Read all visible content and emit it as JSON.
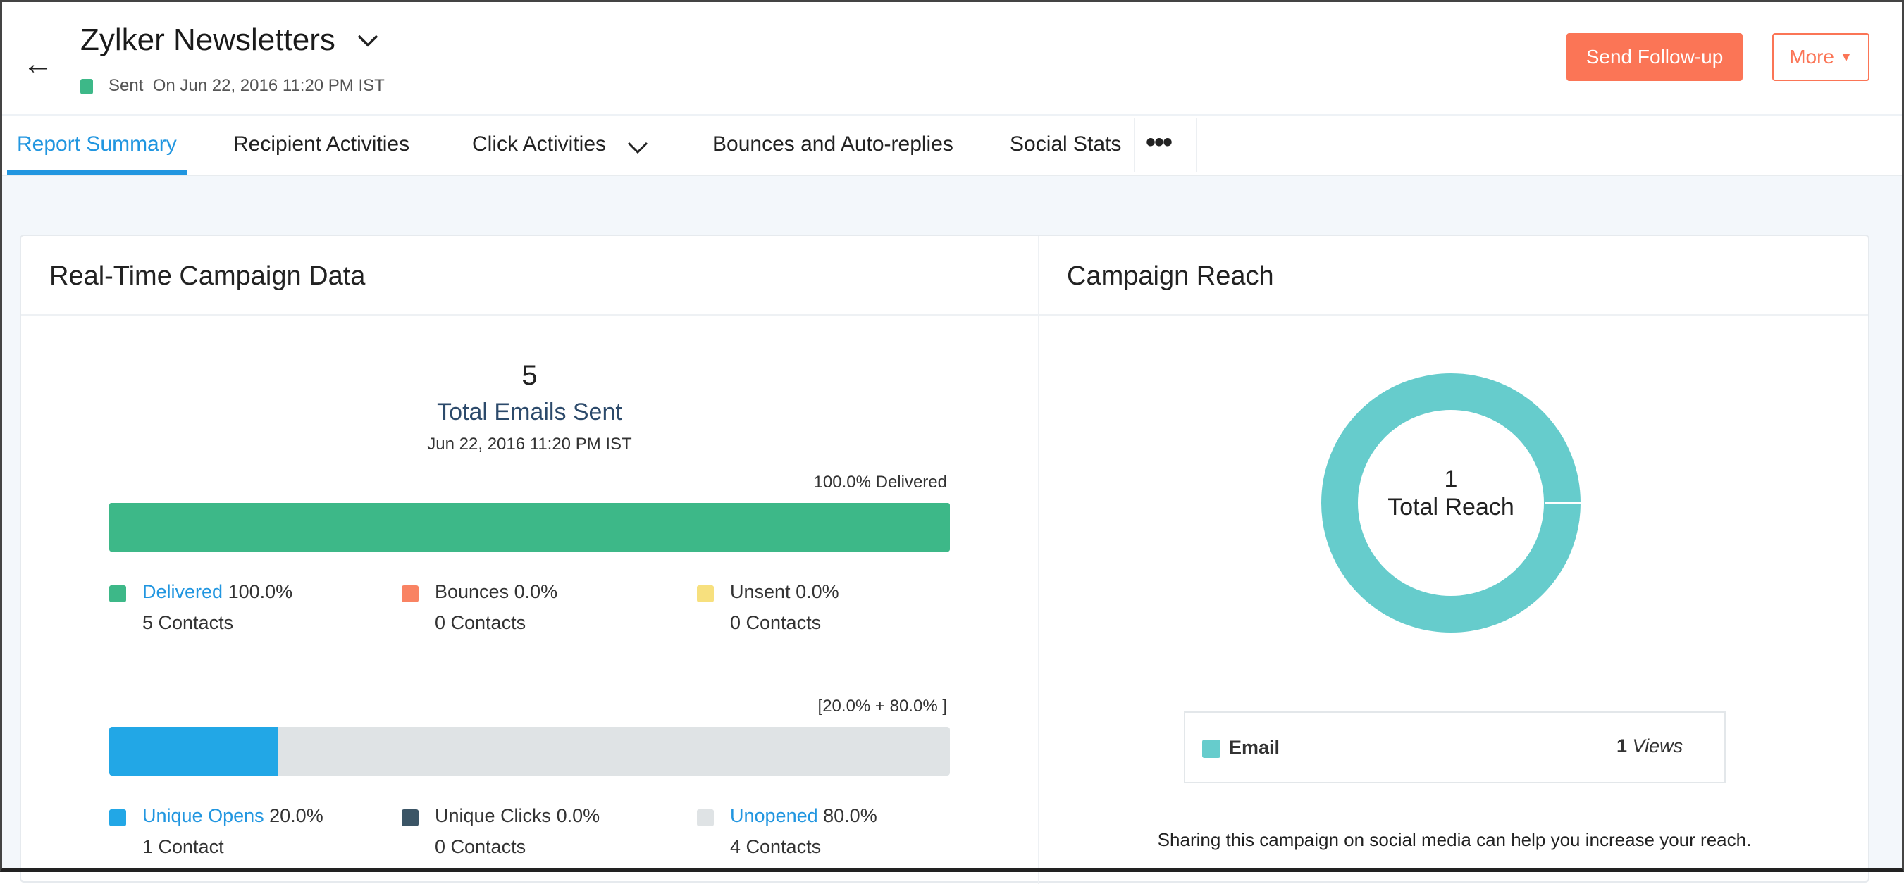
{
  "header": {
    "title": "Zylker Newsletters",
    "status": "Sent",
    "sent_on": "On Jun 22, 2016 11:20 PM IST",
    "status_color": "#3db888",
    "send_followup": "Send Follow-up",
    "more": "More"
  },
  "tabs": [
    {
      "label": "Report Summary",
      "active": true
    },
    {
      "label": "Recipient Activities"
    },
    {
      "label": "Click Activities"
    },
    {
      "label": "Bounces and Auto-replies"
    },
    {
      "label": "Social Stats"
    }
  ],
  "realtime": {
    "title": "Real-Time Campaign Data",
    "total": "5",
    "total_label": "Total Emails Sent",
    "date": "Jun 22, 2016 11:20 PM IST",
    "delivered_caption": "100.0% Delivered",
    "delivered_pct": 100,
    "delivery_legend": [
      {
        "label": "Delivered",
        "value": "100.0%",
        "contacts": "5 Contacts",
        "color": "#3db888",
        "link": true
      },
      {
        "label": "Bounces",
        "value": "0.0%",
        "contacts": "0 Contacts",
        "color": "#f98363",
        "link": false
      },
      {
        "label": "Unsent",
        "value": "0.0%",
        "contacts": "0 Contacts",
        "color": "#f7e07e",
        "link": false
      }
    ],
    "opens_caption": "[20.0% + 80.0% ]",
    "opens_pct": 20,
    "open_legend": [
      {
        "label": "Unique Opens",
        "value": "20.0%",
        "contacts": "1 Contact",
        "color": "#22a7e6",
        "link": true
      },
      {
        "label": "Unique Clicks",
        "value": "0.0%",
        "contacts": "0 Contacts",
        "color": "#3b5566",
        "link": false
      },
      {
        "label": "Unopened",
        "value": "80.0%",
        "contacts": "4 Contacts",
        "color": "#dfe3e5",
        "link": true
      }
    ]
  },
  "reach": {
    "title": "Campaign Reach",
    "total": "1",
    "total_label": "Total Reach",
    "donut_color": "#66cccc",
    "legend": {
      "label": "Email",
      "count": "1",
      "unit": "Views"
    },
    "note": "Sharing this campaign on social media can help you increase your reach."
  }
}
